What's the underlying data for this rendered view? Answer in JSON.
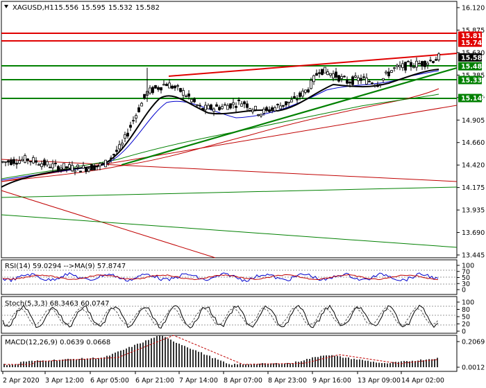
{
  "chart_data": [
    {
      "type": "candlestick",
      "title": "XAGUSD,H1",
      "header_values": [
        "15.556",
        "15.595",
        "15.532",
        "15.582"
      ],
      "y_ticks": [
        "16.120",
        "15.875",
        "15.630",
        "15.385",
        "15.140",
        "14.905",
        "14.660",
        "14.420",
        "14.175",
        "13.935",
        "13.690",
        "13.445"
      ],
      "ylim": [
        13.445,
        16.12
      ],
      "x_ticks": [
        "2 Apr 2020",
        "3 Apr 12:00",
        "6 Apr 05:00",
        "6 Apr 21:00",
        "7 Apr 14:00",
        "8 Apr 07:00",
        "8 Apr 23:00",
        "9 Apr 16:00",
        "13 Apr 09:00",
        "14 Apr 02:00"
      ],
      "price_tags": [
        {
          "label": "15.817",
          "value": 15.817,
          "color": "#e00000"
        },
        {
          "label": "15.741",
          "value": 15.741,
          "color": "#e00000"
        },
        {
          "label": "15.582",
          "value": 15.582,
          "color": "#000000"
        },
        {
          "label": "15.486",
          "value": 15.486,
          "color": "#008000"
        },
        {
          "label": "15.337",
          "value": 15.337,
          "color": "#008000"
        },
        {
          "label": "15.142",
          "value": 15.142,
          "color": "#008000"
        }
      ],
      "grid": false
    },
    {
      "type": "line",
      "title": "RSI(14) 59.0294 -->MA(9) 57.8747",
      "y_ticks": [
        "100",
        "70",
        "50",
        "30",
        "0"
      ],
      "ylim": [
        0,
        100
      ],
      "levels": [
        70,
        50,
        30
      ]
    },
    {
      "type": "line",
      "title": "Stoch(5,3,3) 68.3463 60.0747",
      "y_ticks": [
        "100",
        "80",
        "50",
        "20",
        "0"
      ],
      "ylim": [
        0,
        100
      ],
      "levels": [
        80,
        50,
        20
      ]
    },
    {
      "type": "bar",
      "title": "MACD(12,26,9) 0.0639 0.0668",
      "y_ticks": [
        "0.2069",
        "0.0012"
      ],
      "ylim": [
        0,
        0.2069
      ]
    }
  ]
}
